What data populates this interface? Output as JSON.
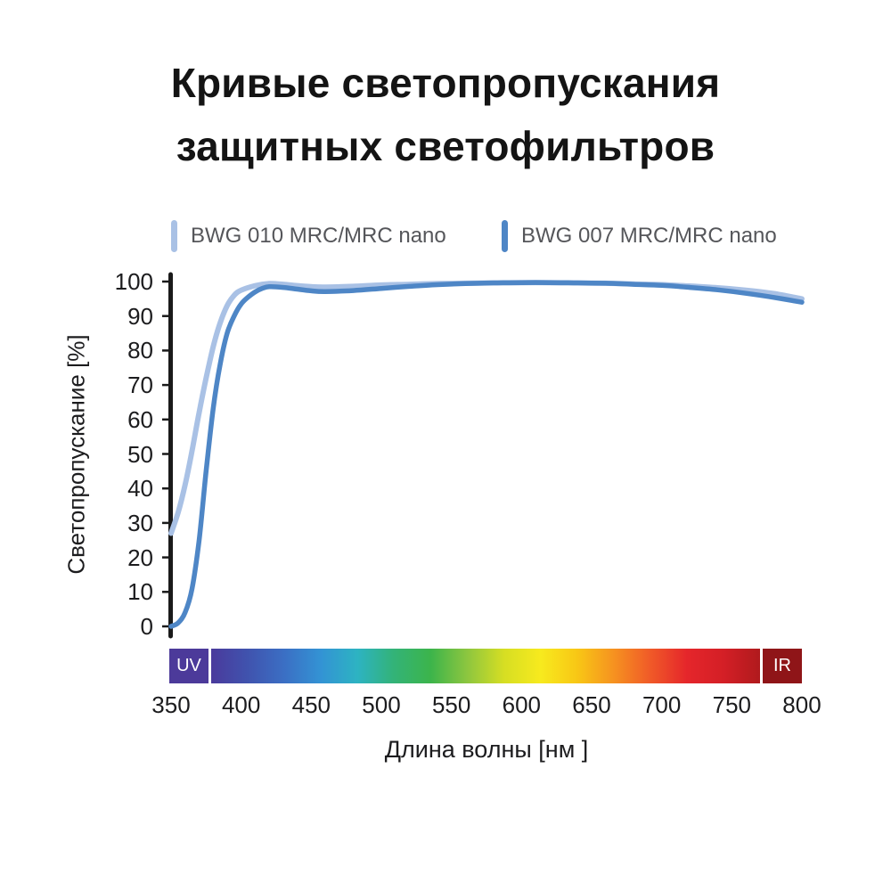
{
  "title": {
    "line1": "Кривые светопропускания",
    "line2": "защитных светофильтров"
  },
  "legend": [
    {
      "label": "BWG 010 MRC/MRC nano",
      "color": "#a9c1e5"
    },
    {
      "label": "BWG 007 MRC/MRC nano",
      "color": "#4e86c6"
    }
  ],
  "chart_data": {
    "type": "line",
    "title": "Кривые светопропускания защитных светофильтров",
    "xlabel": "Длина волны [нм ]",
    "ylabel": "Светопропускание [%]",
    "xlim": [
      350,
      800
    ],
    "ylim": [
      0,
      100
    ],
    "grid": false,
    "legend_position": "top",
    "x_ticks": [
      350,
      400,
      450,
      500,
      550,
      600,
      650,
      700,
      750,
      800
    ],
    "y_ticks": [
      0,
      10,
      20,
      30,
      40,
      50,
      60,
      70,
      80,
      90,
      100
    ],
    "series": [
      {
        "name": "BWG 010 MRC/MRC nano",
        "color": "#a9c1e5",
        "width": 6,
        "x": [
          350,
          355,
          360,
          365,
          370,
          375,
          380,
          385,
          390,
          395,
          400,
          410,
          420,
          430,
          440,
          450,
          460,
          480,
          500,
          520,
          540,
          560,
          580,
          600,
          620,
          640,
          660,
          680,
          700,
          720,
          740,
          760,
          780,
          800
        ],
        "values": [
          27,
          33,
          41,
          51,
          62,
          72,
          81,
          88,
          93,
          96,
          97.5,
          98.8,
          99.4,
          99.2,
          98.8,
          98.5,
          98.4,
          98.6,
          99,
          99.2,
          99.4,
          99.5,
          99.6,
          99.7,
          99.7,
          99.6,
          99.5,
          99.3,
          99.1,
          98.7,
          98.2,
          97.5,
          96.5,
          95
        ]
      },
      {
        "name": "BWG 007 MRC/MRC nano",
        "color": "#4e86c6",
        "width": 5.5,
        "x": [
          350,
          355,
          360,
          365,
          370,
          375,
          380,
          385,
          390,
          395,
          400,
          405,
          410,
          415,
          420,
          430,
          440,
          450,
          460,
          480,
          500,
          520,
          540,
          560,
          580,
          600,
          620,
          640,
          660,
          680,
          700,
          720,
          740,
          760,
          780,
          800
        ],
        "values": [
          0,
          1,
          4,
          11,
          25,
          45,
          63,
          76,
          85,
          90,
          93.5,
          95.5,
          97,
          98,
          98.5,
          98.3,
          97.8,
          97.3,
          97.1,
          97.4,
          98,
          98.6,
          99.1,
          99.4,
          99.6,
          99.7,
          99.7,
          99.6,
          99.5,
          99.2,
          98.9,
          98.3,
          97.6,
          96.6,
          95.4,
          94
        ]
      }
    ],
    "spectrum_bar": {
      "uv_label": "UV",
      "ir_label": "IR",
      "uv_color": "#4c3a9a",
      "ir_color": "#8f1518",
      "gradient": [
        "#4a3a9c",
        "#4053ae",
        "#3b6fc4",
        "#3393d4",
        "#2db3c2",
        "#33b377",
        "#3cb44b",
        "#8dc63f",
        "#d6de23",
        "#f7ea1e",
        "#f8c715",
        "#f69220",
        "#f05a28",
        "#e5262b",
        "#d41f26",
        "#b01a1d"
      ]
    }
  }
}
